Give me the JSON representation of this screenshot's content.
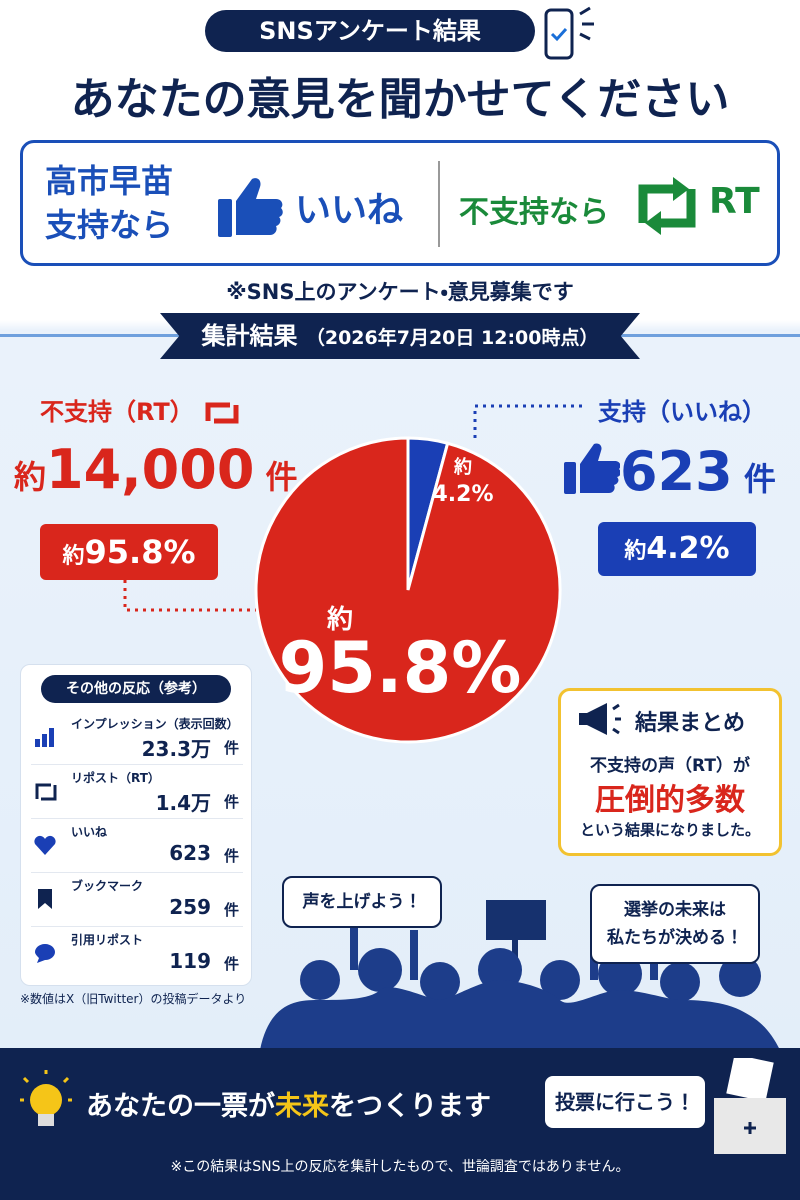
{
  "header": {
    "badge": "SNSアンケート結果",
    "title": "あなたの意見を聞かせてください"
  },
  "instruction": {
    "support_condition": [
      "高市早苗",
      "支持なら"
    ],
    "support_action": "いいね",
    "oppose_condition": "不支持なら",
    "oppose_action": "RT"
  },
  "note": "※SNS上のアンケート・意見募集です",
  "results_heading": {
    "title": "集計結果",
    "timestamp": "（2026年7月20日 12:00時点）"
  },
  "chart_data": {
    "type": "pie",
    "categories": [
      "不支持（RT）",
      "支持（いいね）"
    ],
    "values": [
      95.8,
      4.2
    ],
    "value_labels": [
      "95.8%",
      "4.2%"
    ],
    "colors": [
      "#d9261c",
      "#1a3fb5"
    ],
    "approx": "約",
    "count_labels": [
      "14,000",
      "623"
    ],
    "count_unit": "件"
  },
  "other_reactions": {
    "title": "その他の反応（参考）",
    "unit": "件",
    "items": [
      {
        "label": "インプレッション（表示回数）",
        "value": "23.3万"
      },
      {
        "label": "リポスト（RT）",
        "value": "1.4万"
      },
      {
        "label": "いいね",
        "value": "623"
      },
      {
        "label": "ブックマーク",
        "value": "259"
      },
      {
        "label": "引用リポスト",
        "value": "119"
      }
    ],
    "source": "※数値はX（旧Twitter）の投稿データより"
  },
  "summary": {
    "title": "結果まとめ",
    "lines": [
      "不支持の声（RT）が",
      "圧倒的多数",
      "という結果になりました。"
    ]
  },
  "speech": [
    [
      "声を上げよう！"
    ],
    [
      "選挙の未来は",
      "私たちが決める！"
    ]
  ],
  "footer": {
    "message": [
      "あなたの一票が",
      "未来",
      "をつくります"
    ],
    "button": "投票に行こう！",
    "disclaimer": "※この結果はSNS上の反応を集計したもので、世論調査ではありません。"
  }
}
